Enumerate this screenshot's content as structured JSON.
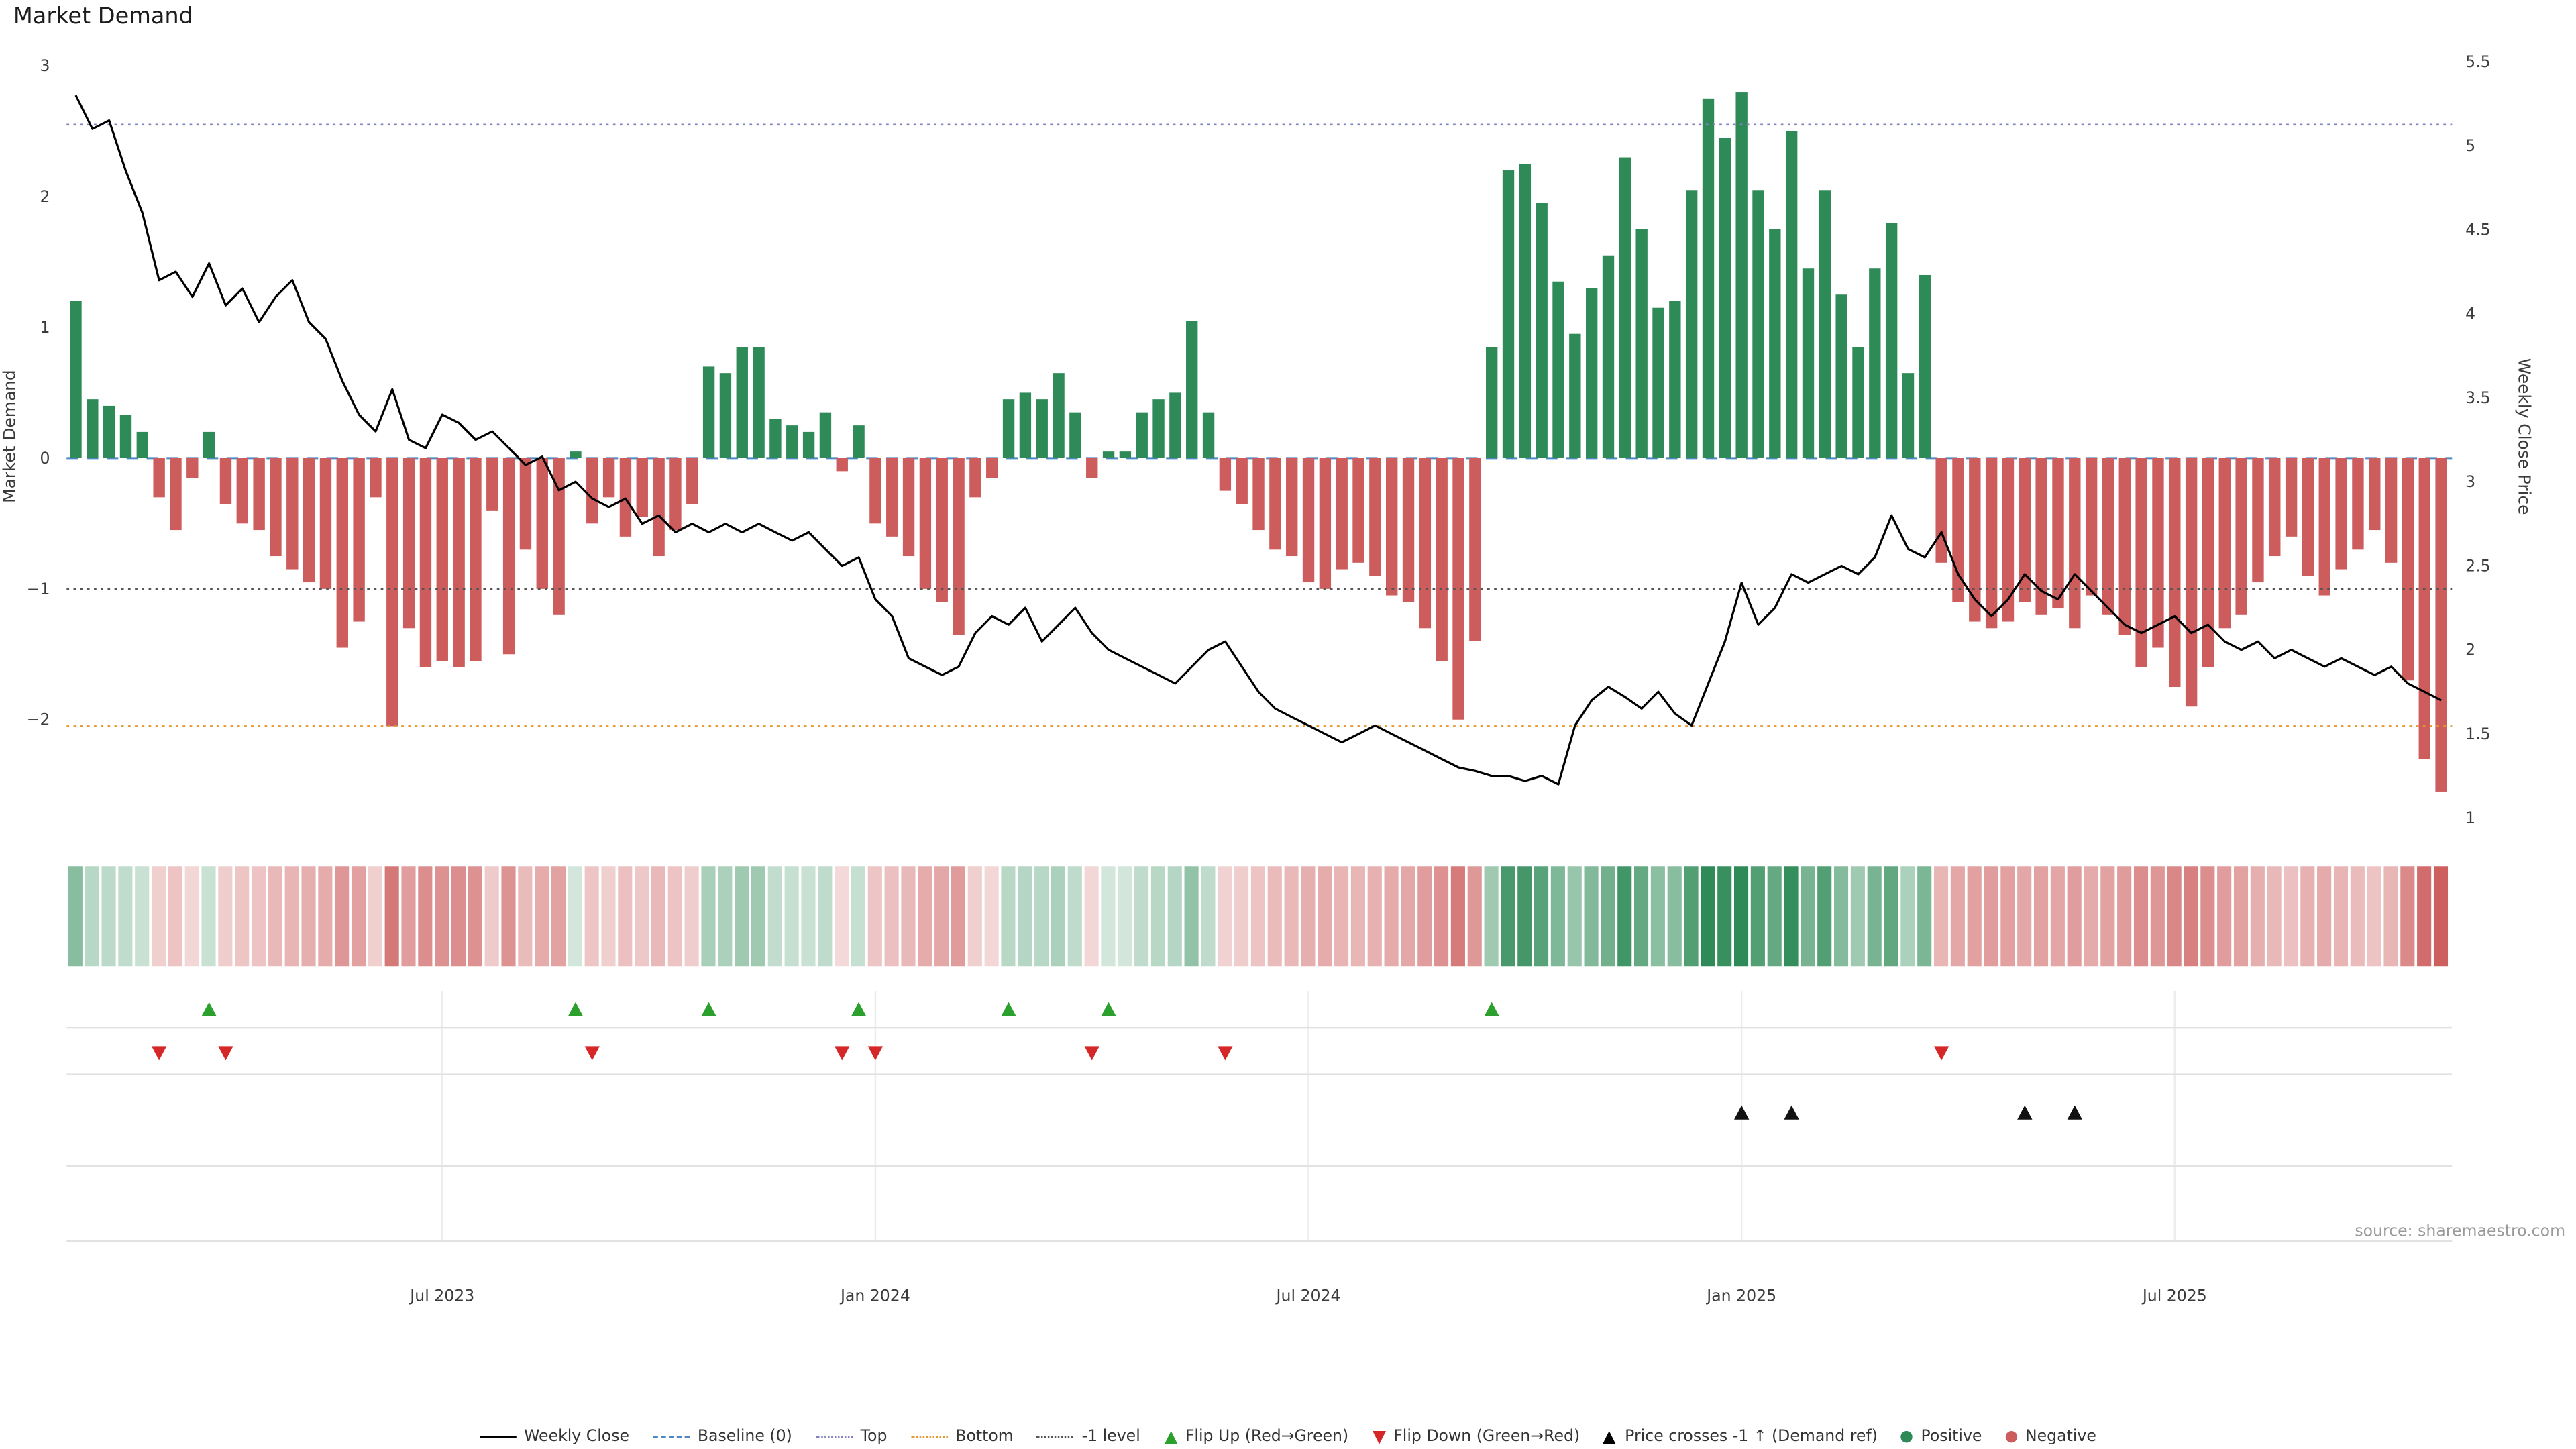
{
  "page": {
    "title": "Market Demand",
    "source": "source: sharemaestro.com"
  },
  "chart_data": {
    "type": "bar",
    "title": "Market Demand",
    "left_axis": {
      "label": "Market Demand",
      "ticks": [
        3,
        2,
        1,
        0,
        -1,
        -2
      ],
      "min": -2.85,
      "max": 3.05
    },
    "right_axis": {
      "label": "Weekly Close Price",
      "ticks": [
        5.5,
        5,
        4.5,
        4,
        3.5,
        3,
        2.5,
        2,
        1.5,
        1
      ],
      "min": 1,
      "max": 5.5
    },
    "x_axis": {
      "tick_labels": [
        "Jul 2023",
        "Jan 2024",
        "Jul 2024",
        "Jan 2025",
        "Jul 2025"
      ],
      "tick_weeks": [
        22,
        48,
        74,
        100,
        126
      ],
      "n_weeks": 143
    },
    "reference_lines": {
      "baseline": 0,
      "top": 2.55,
      "bottom": -2.05,
      "minus1": -1
    },
    "series": [
      {
        "name": "Market Demand",
        "type": "bar",
        "axis": "left",
        "values": [
          1.2,
          0.45,
          0.4,
          0.33,
          0.2,
          -0.3,
          -0.55,
          -0.15,
          0.2,
          -0.35,
          -0.5,
          -0.55,
          -0.75,
          -0.85,
          -0.95,
          -1.0,
          -1.45,
          -1.25,
          -0.3,
          -2.05,
          -1.3,
          -1.6,
          -1.55,
          -1.6,
          -1.55,
          -0.4,
          -1.5,
          -0.7,
          -1.0,
          -1.2,
          0.05,
          -0.5,
          -0.3,
          -0.6,
          -0.45,
          -0.75,
          -0.55,
          -0.35,
          0.7,
          0.65,
          0.85,
          0.85,
          0.3,
          0.25,
          0.2,
          0.35,
          -0.1,
          0.25,
          -0.5,
          -0.6,
          -0.75,
          -1.0,
          -1.1,
          -1.35,
          -0.3,
          -0.15,
          0.45,
          0.5,
          0.45,
          0.65,
          0.35,
          -0.15,
          0.05,
          0.05,
          0.35,
          0.45,
          0.5,
          1.05,
          0.35,
          -0.25,
          -0.35,
          -0.55,
          -0.7,
          -0.75,
          -0.95,
          -1.0,
          -0.85,
          -0.8,
          -0.9,
          -1.05,
          -1.1,
          -1.3,
          -1.55,
          -2.0,
          -1.4,
          0.85,
          2.2,
          2.25,
          1.95,
          1.35,
          0.95,
          1.3,
          1.55,
          2.3,
          1.75,
          1.15,
          1.2,
          2.05,
          2.75,
          2.45,
          2.8,
          2.05,
          1.75,
          2.5,
          1.45,
          2.05,
          1.25,
          0.85,
          1.45,
          1.8,
          0.65,
          1.4,
          -0.8,
          -1.1,
          -1.25,
          -1.3,
          -1.25,
          -1.1,
          -1.2,
          -1.15,
          -1.3,
          -1.05,
          -1.2,
          -1.35,
          -1.6,
          -1.45,
          -1.75,
          -1.9,
          -1.6,
          -1.3,
          -1.2,
          -0.95,
          -0.75,
          -0.6,
          -0.9,
          -1.05,
          -0.85,
          -0.7,
          -0.55,
          -0.8,
          -1.7,
          -2.3,
          -2.55
        ]
      },
      {
        "name": "Weekly Close",
        "type": "line",
        "axis": "right",
        "values": [
          5.3,
          5.1,
          5.15,
          4.85,
          4.6,
          4.2,
          4.25,
          4.1,
          4.3,
          4.05,
          4.15,
          3.95,
          4.1,
          4.2,
          3.95,
          3.85,
          3.6,
          3.4,
          3.3,
          3.55,
          3.25,
          3.2,
          3.4,
          3.35,
          3.25,
          3.3,
          3.2,
          3.1,
          3.15,
          2.95,
          3.0,
          2.9,
          2.85,
          2.9,
          2.75,
          2.8,
          2.7,
          2.75,
          2.7,
          2.75,
          2.7,
          2.75,
          2.7,
          2.65,
          2.7,
          2.6,
          2.5,
          2.55,
          2.3,
          2.2,
          1.95,
          1.9,
          1.85,
          1.9,
          2.1,
          2.2,
          2.15,
          2.25,
          2.05,
          2.15,
          2.25,
          2.1,
          2.0,
          1.95,
          1.9,
          1.85,
          1.8,
          1.9,
          2.0,
          2.05,
          1.9,
          1.75,
          1.65,
          1.6,
          1.55,
          1.5,
          1.45,
          1.5,
          1.55,
          1.5,
          1.45,
          1.4,
          1.35,
          1.3,
          1.28,
          1.25,
          1.25,
          1.22,
          1.25,
          1.2,
          1.55,
          1.7,
          1.78,
          1.72,
          1.65,
          1.75,
          1.62,
          1.55,
          1.8,
          2.05,
          2.4,
          2.15,
          2.25,
          2.45,
          2.4,
          2.45,
          2.5,
          2.45,
          2.55,
          2.8,
          2.6,
          2.55,
          2.7,
          2.45,
          2.3,
          2.2,
          2.3,
          2.45,
          2.35,
          2.3,
          2.45,
          2.35,
          2.25,
          2.15,
          2.1,
          2.15,
          2.2,
          2.1,
          2.15,
          2.05,
          2.0,
          2.05,
          1.95,
          2.0,
          1.95,
          1.9,
          1.95,
          1.9,
          1.85,
          1.9,
          1.8,
          1.75,
          1.7
        ]
      }
    ],
    "markers": {
      "flip_up_weeks": [
        8,
        30,
        38,
        47,
        56,
        62,
        85
      ],
      "flip_down_weeks": [
        5,
        9,
        31,
        46,
        48,
        61,
        69,
        112
      ],
      "price_cross_weeks": [
        100,
        103,
        117,
        120
      ]
    },
    "colors": {
      "positive": "#2e8b57",
      "negative": "#cd5c5c",
      "price_line": "#000000",
      "baseline": "#4d88c4",
      "top": "#8181c0",
      "bottom": "#e5962d",
      "minus1": "#555555",
      "flip_up": "#2ca02c",
      "flip_down": "#d62728",
      "price_cross": "#111111"
    }
  },
  "legend": {
    "items": [
      {
        "label": "Weekly Close",
        "icon": "line",
        "color": "#000000"
      },
      {
        "label": "Baseline (0)",
        "icon": "dashed-line",
        "color": "#4d88c4"
      },
      {
        "label": "Top",
        "icon": "dotted-line",
        "color": "#8181c0"
      },
      {
        "label": "Bottom",
        "icon": "dotted-line",
        "color": "#e5962d"
      },
      {
        "label": "-1 level",
        "icon": "dotted-line",
        "color": "#555555"
      },
      {
        "label": "Flip Up (Red→Green)",
        "icon": "triangle-up",
        "color": "#2ca02c"
      },
      {
        "label": "Flip Down (Green→Red)",
        "icon": "triangle-down",
        "color": "#d62728"
      },
      {
        "label": "Price crosses -1 ↑ (Demand ref)",
        "icon": "triangle-up",
        "color": "#000000"
      },
      {
        "label": "Positive",
        "icon": "dot",
        "color": "#2e8b57"
      },
      {
        "label": "Negative",
        "icon": "dot",
        "color": "#cd5c5c"
      }
    ]
  }
}
